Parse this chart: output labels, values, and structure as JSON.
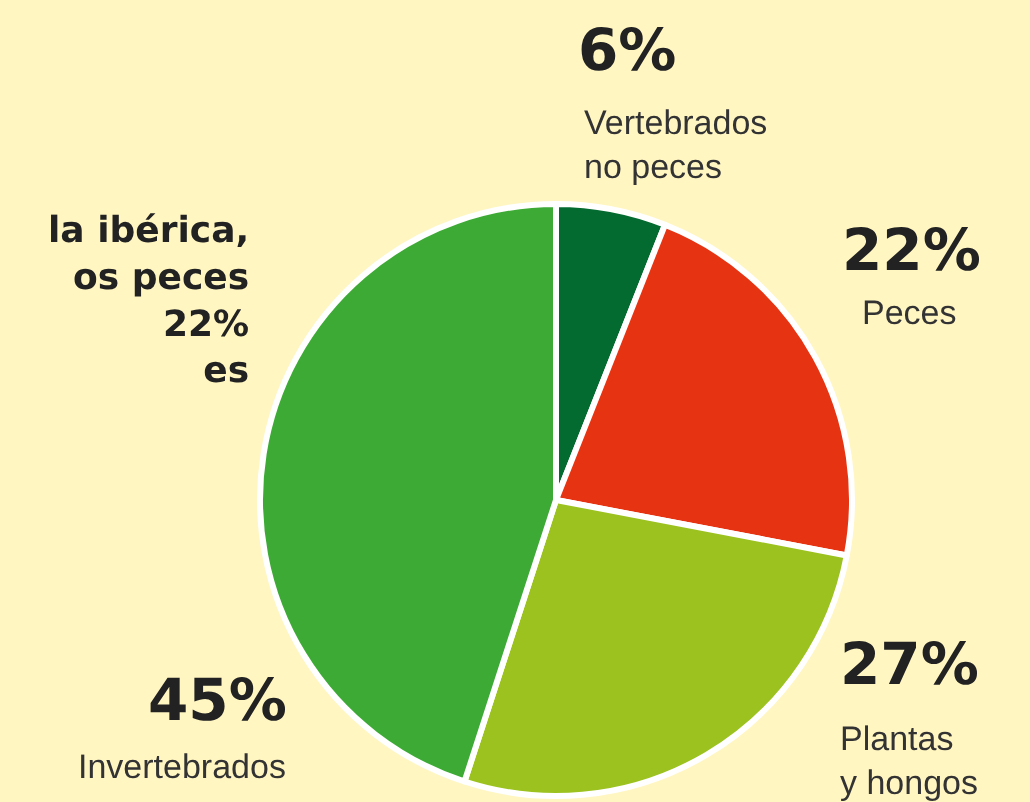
{
  "chart_data": {
    "type": "pie",
    "categories": [
      "Vertebrados no peces",
      "Peces",
      "Plantas y hongos",
      "Invertebrados"
    ],
    "values": [
      6,
      22,
      27,
      45
    ],
    "colors": [
      "#046b30",
      "#e63312",
      "#9bc21f",
      "#3daa35"
    ],
    "value_labels": [
      "6%",
      "22%",
      "27%",
      "45%"
    ],
    "annotations": [
      "la ibérica,\nos peces\n22%\nes"
    ],
    "legend": false
  }
}
